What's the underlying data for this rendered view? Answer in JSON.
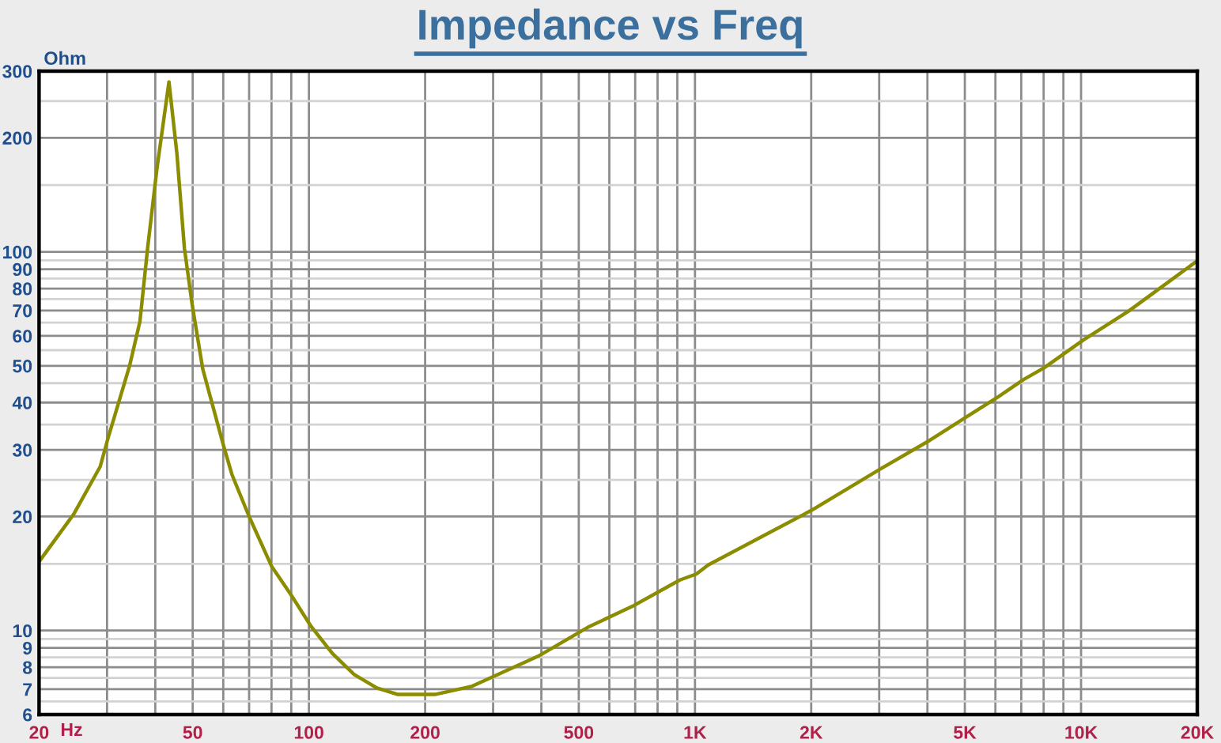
{
  "chart_data": {
    "type": "line",
    "title": "Impedance vs Freq",
    "xlabel": "Hz",
    "ylabel": "Ohm",
    "log": "xy",
    "grid": true,
    "x": [
      20,
      24.6,
      28.8,
      30.2,
      34.3,
      36.5,
      38.2,
      40.4,
      43.4,
      45.5,
      47.6,
      49.9,
      53.1,
      60.3,
      63.2,
      70,
      80,
      90,
      101,
      115,
      131,
      150,
      170,
      212,
      265,
      392,
      528,
      690,
      914,
      1008,
      1082,
      2008,
      3020,
      4060,
      5080,
      6120,
      7100,
      8020,
      10140,
      13300,
      20000
    ],
    "series": [
      {
        "color": "#8c8c00",
        "values": [
          15.2,
          20.3,
          27.1,
          32.3,
          49.9,
          65.5,
          102,
          166,
          281,
          182,
          102,
          72,
          49,
          30.4,
          25.8,
          20,
          14.8,
          12.4,
          10.3,
          8.7,
          7.65,
          7.05,
          6.78,
          6.78,
          7.13,
          8.55,
          10.2,
          11.6,
          13.6,
          14.1,
          14.9,
          20.8,
          26.7,
          31.8,
          36.8,
          41.5,
          46,
          49.4,
          58.5,
          69.8,
          94.7
        ]
      }
    ],
    "xlim": [
      20,
      20000
    ],
    "ylim": [
      6,
      300
    ],
    "xticks": [
      20,
      {
        "value": 30,
        "label": null
      },
      {
        "value": 40,
        "label": null
      },
      50,
      {
        "value": 60,
        "label": null
      },
      {
        "value": 70,
        "label": null
      },
      {
        "value": 80,
        "label": null
      },
      {
        "value": 90,
        "label": null
      },
      100,
      200,
      {
        "value": 300,
        "label": null
      },
      {
        "value": 400,
        "label": null
      },
      500,
      {
        "value": 600,
        "label": null
      },
      {
        "value": 700,
        "label": null
      },
      {
        "value": 800,
        "label": null
      },
      {
        "value": 900,
        "label": null
      },
      {
        "value": 1000,
        "label": "1K"
      },
      {
        "value": 2000,
        "label": "2K"
      },
      {
        "value": 3000,
        "label": null
      },
      {
        "value": 4000,
        "label": null
      },
      {
        "value": 5000,
        "label": "5K"
      },
      {
        "value": 6000,
        "label": null
      },
      {
        "value": 7000,
        "label": null
      },
      {
        "value": 8000,
        "label": null
      },
      {
        "value": 9000,
        "label": null
      },
      {
        "value": 10000,
        "label": "10K"
      },
      {
        "value": 20000,
        "label": "20K"
      }
    ],
    "yticks": [
      6,
      {
        "value": 6.5,
        "label": null
      },
      7,
      {
        "value": 7.5,
        "label": null
      },
      8,
      {
        "value": 8.5,
        "label": null
      },
      9,
      {
        "value": 9.5,
        "label": null
      },
      10,
      {
        "value": 15,
        "label": null
      },
      20,
      {
        "value": 25,
        "label": null
      },
      30,
      {
        "value": 35,
        "label": null
      },
      40,
      {
        "value": 45,
        "label": null
      },
      50,
      {
        "value": 55,
        "label": null
      },
      60,
      {
        "value": 65,
        "label": null
      },
      70,
      {
        "value": 75,
        "label": null
      },
      80,
      {
        "value": 85,
        "label": null
      },
      90,
      {
        "value": 95,
        "label": null
      },
      100,
      {
        "value": 150,
        "label": null
      },
      200,
      {
        "value": 250,
        "label": null
      },
      300
    ]
  }
}
